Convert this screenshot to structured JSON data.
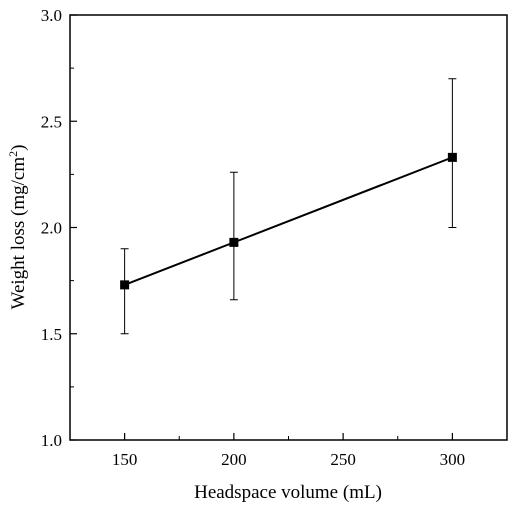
{
  "chart_data": {
    "type": "line",
    "title": "",
    "xlabel": "Headspace volume (mL)",
    "ylabel_main": "Weight loss (mg/cm",
    "ylabel_sup": "2",
    "ylabel_tail": ")",
    "xlim": [
      125,
      325
    ],
    "ylim": [
      1.0,
      3.0
    ],
    "xticks": [
      150,
      200,
      250,
      300
    ],
    "xtick_labels": [
      "150",
      "200",
      "250",
      "300"
    ],
    "yticks": [
      1.0,
      1.5,
      2.0,
      2.5,
      3.0
    ],
    "ytick_labels": [
      "1.0",
      "1.5",
      "2.0",
      "2.5",
      "3.0"
    ],
    "grid": false,
    "legend": "none",
    "marker": "square",
    "line_color": "#000000",
    "series": [
      {
        "x": [
          150,
          200,
          300
        ],
        "y": [
          1.73,
          1.93,
          2.33
        ],
        "err_low": [
          1.5,
          1.66,
          2.0
        ],
        "err_high": [
          1.9,
          2.26,
          2.7
        ]
      }
    ]
  }
}
